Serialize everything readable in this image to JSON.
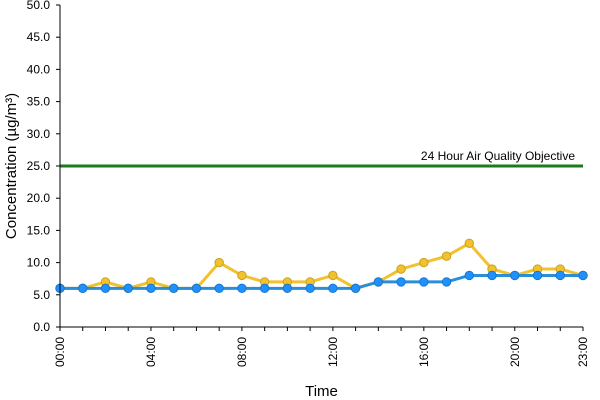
{
  "chart_data": {
    "type": "line",
    "xlabel": "Time",
    "ylabel": "Concentration (µg/m³)",
    "ylim": [
      0,
      50
    ],
    "yticks": [
      "0.0",
      "5.0",
      "10.0",
      "15.0",
      "20.0",
      "25.0",
      "30.0",
      "35.0",
      "40.0",
      "45.0",
      "50.0"
    ],
    "x": [
      "00:00",
      "01:00",
      "02:00",
      "03:00",
      "04:00",
      "05:00",
      "06:00",
      "07:00",
      "08:00",
      "09:00",
      "10:00",
      "11:00",
      "12:00",
      "13:00",
      "14:00",
      "15:00",
      "16:00",
      "17:00",
      "18:00",
      "19:00",
      "20:00",
      "21:00",
      "22:00",
      "23:00"
    ],
    "xtick_labels": [
      "00:00",
      "04:00",
      "08:00",
      "12:00",
      "16:00",
      "20:00",
      "23:00"
    ],
    "xtick_indices": [
      0,
      4,
      8,
      12,
      16,
      20,
      23
    ],
    "grid": false,
    "series": [
      {
        "color": "#F2C12E",
        "marker_fill": "#F2C12E",
        "marker_edge": "#C9A21E",
        "values": [
          6,
          6,
          7,
          6,
          7,
          6,
          6,
          10,
          8,
          7,
          7,
          7,
          8,
          6,
          7,
          9,
          10,
          11,
          13,
          9,
          8,
          9,
          9,
          8
        ]
      },
      {
        "color": "#2A8FD6",
        "marker_fill": "#1E90FF",
        "marker_edge": "#1877C9",
        "values": [
          6,
          6,
          6,
          6,
          6,
          6,
          6,
          6,
          6,
          6,
          6,
          6,
          6,
          6,
          7,
          7,
          7,
          7,
          8,
          8,
          8,
          8,
          8,
          8
        ]
      }
    ],
    "reference_line": {
      "value": 25,
      "label": "24 Hour Air Quality Objective",
      "color": "#1E7A1E"
    }
  }
}
